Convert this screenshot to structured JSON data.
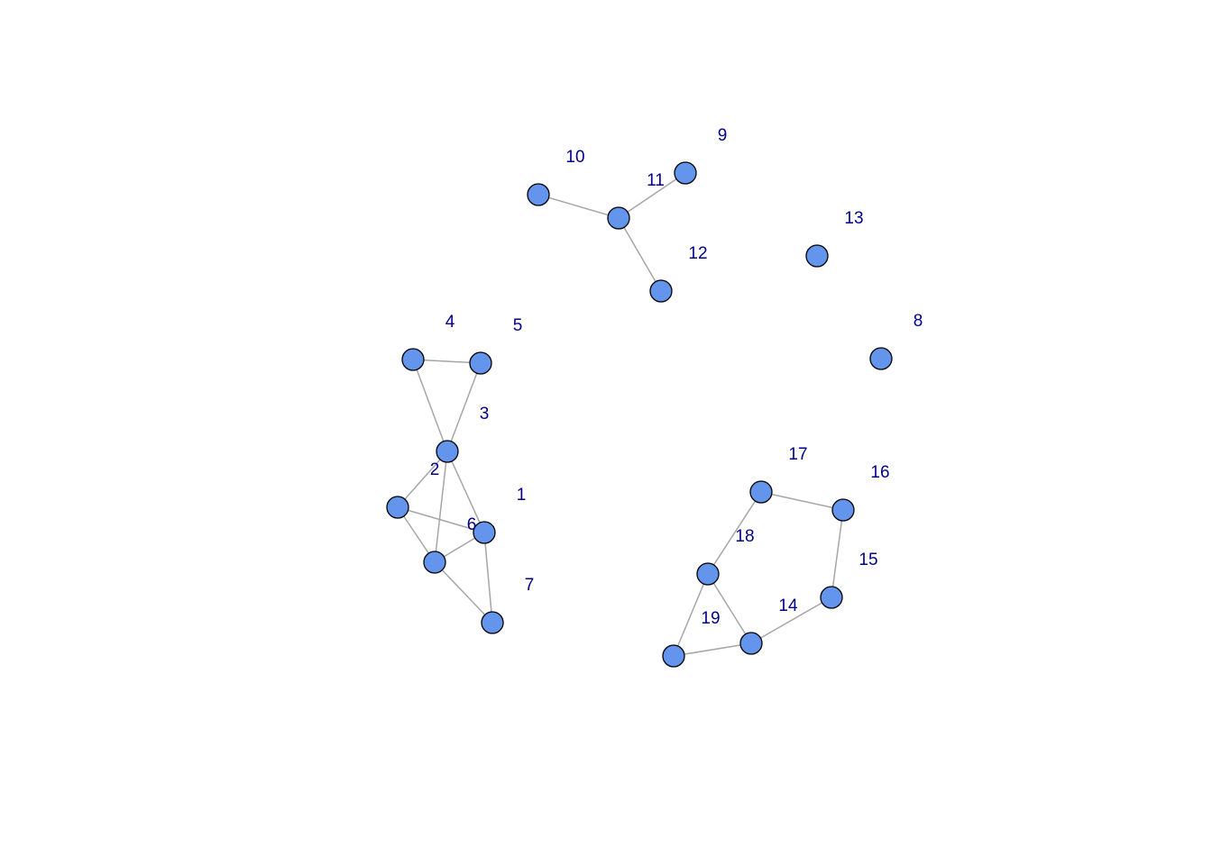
{
  "graph": {
    "node_color": "#6495ed",
    "edge_color": "#a6a6a6",
    "label_color": "#00008b",
    "nodes": [
      {
        "id": "1",
        "label": "1"
      },
      {
        "id": "2",
        "label": "2"
      },
      {
        "id": "3",
        "label": "3"
      },
      {
        "id": "4",
        "label": "4"
      },
      {
        "id": "5",
        "label": "5"
      },
      {
        "id": "6",
        "label": "6"
      },
      {
        "id": "7",
        "label": "7"
      },
      {
        "id": "8",
        "label": "8"
      },
      {
        "id": "9",
        "label": "9"
      },
      {
        "id": "10",
        "label": "10"
      },
      {
        "id": "11",
        "label": "11"
      },
      {
        "id": "12",
        "label": "12"
      },
      {
        "id": "13",
        "label": "13"
      },
      {
        "id": "14",
        "label": "14"
      },
      {
        "id": "15",
        "label": "15"
      },
      {
        "id": "16",
        "label": "16"
      },
      {
        "id": "17",
        "label": "17"
      },
      {
        "id": "18",
        "label": "18"
      },
      {
        "id": "19",
        "label": "19"
      }
    ],
    "edges": [
      [
        "4",
        "5"
      ],
      [
        "4",
        "3"
      ],
      [
        "5",
        "3"
      ],
      [
        "3",
        "2"
      ],
      [
        "3",
        "6"
      ],
      [
        "3",
        "1"
      ],
      [
        "2",
        "6"
      ],
      [
        "2",
        "1"
      ],
      [
        "6",
        "1"
      ],
      [
        "1",
        "7"
      ],
      [
        "6",
        "7"
      ],
      [
        "10",
        "11"
      ],
      [
        "11",
        "9"
      ],
      [
        "11",
        "12"
      ],
      [
        "17",
        "16"
      ],
      [
        "17",
        "18"
      ],
      [
        "16",
        "15"
      ],
      [
        "15",
        "14"
      ],
      [
        "18",
        "14"
      ],
      [
        "18",
        "19"
      ],
      [
        "19",
        "14"
      ]
    ]
  }
}
